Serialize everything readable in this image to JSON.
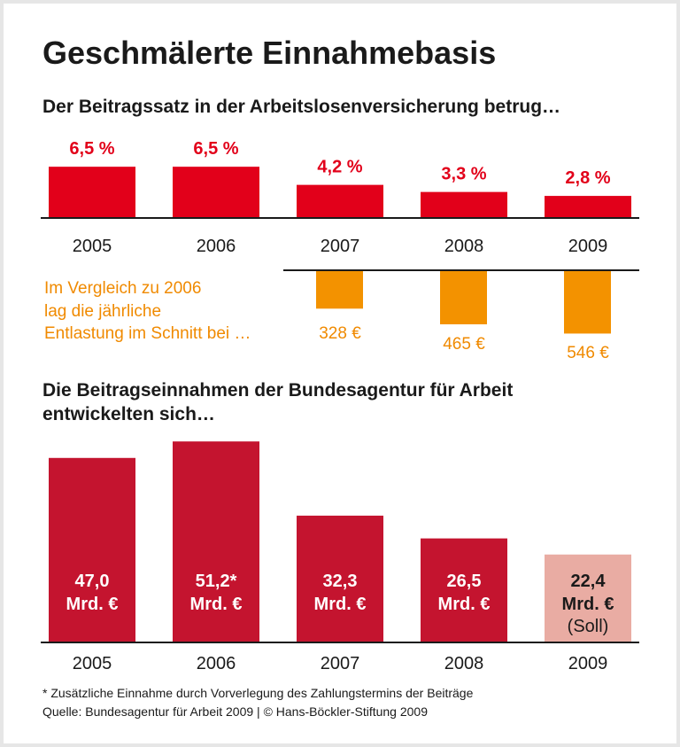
{
  "title": "Geschmälerte Einnahmebasis",
  "colors": {
    "rate": "#e2001a",
    "relief": "#f39200",
    "revenue": "#c4142f",
    "revenue_planned": "#e9aca3",
    "axis": "#1a1a1a"
  },
  "chart_data": [
    {
      "type": "bar",
      "title": "Der Beitragssatz in der Arbeitslosenversicherung betrug…",
      "categories": [
        "2005",
        "2006",
        "2007",
        "2008",
        "2009"
      ],
      "values": [
        6.5,
        6.5,
        4.2,
        3.3,
        2.8
      ],
      "data_labels": [
        "6,5 %",
        "6,5 %",
        "4,2 %",
        "3,3 %",
        "2,8 %"
      ],
      "unit": "%"
    },
    {
      "type": "bar",
      "orientation": "downward",
      "annotation": [
        "Im Vergleich zu 2006",
        "lag die jährliche",
        "Entlastung im Schnitt bei …"
      ],
      "categories": [
        "2007",
        "2008",
        "2009"
      ],
      "values": [
        328,
        465,
        546
      ],
      "data_labels": [
        "328 €",
        "465 €",
        "546 €"
      ],
      "unit": "€"
    },
    {
      "type": "bar",
      "title": [
        "Die Beitragseinnahmen der Bundesagentur für Arbeit",
        "entwickelten sich…"
      ],
      "categories": [
        "2005",
        "2006",
        "2007",
        "2008",
        "2009"
      ],
      "values": [
        47.0,
        51.2,
        32.3,
        26.5,
        22.4
      ],
      "data_labels": [
        "47,0",
        "51,2*",
        "32,3",
        "26,5",
        "22,4"
      ],
      "unit_label": "Mrd. €",
      "planned_label": "(Soll)",
      "planned": [
        false,
        false,
        false,
        false,
        true
      ]
    }
  ],
  "footnote": "* Zusätzliche Einnahme durch Vorverlegung des Zahlungstermins der Beiträge",
  "source": "Quelle: Bundesagentur für Arbeit 2009 | © Hans-Böckler-Stiftung 2009"
}
